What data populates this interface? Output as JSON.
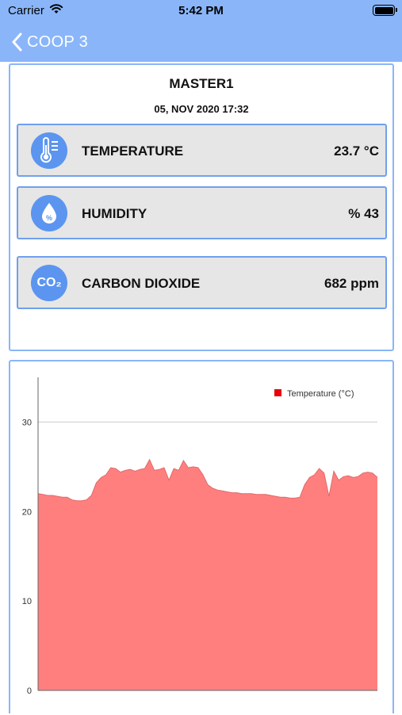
{
  "status_bar": {
    "carrier": "Carrier",
    "time": "5:42 PM"
  },
  "nav": {
    "back_label": "COOP 3"
  },
  "device": {
    "name": "MASTER1",
    "timestamp": "05, NOV 2020 17:32"
  },
  "sensors": [
    {
      "label": "TEMPERATURE",
      "value": "23.7 °C",
      "icon": "thermometer-icon"
    },
    {
      "label": "HUMIDITY",
      "value": "% 43",
      "icon": "droplet-icon"
    },
    {
      "label": "CARBON DIOXIDE",
      "value": "682 ppm",
      "icon": "co2-icon",
      "icon_text": "CO₂"
    }
  ],
  "colors": {
    "accent": "#8ab6f9",
    "card_border": "#6ea0ee",
    "icon_bg": "#5b95f0",
    "series": "#ff7f7f",
    "legend": "#e8000b"
  },
  "chart_data": {
    "type": "area",
    "legend_position": "top-right",
    "grid": true,
    "ylim": [
      0,
      35
    ],
    "yticks": [
      "0",
      "10",
      "20",
      "30"
    ],
    "series": [
      {
        "name": "Temperature (°C)",
        "values": [
          22.0,
          21.9,
          21.8,
          21.8,
          21.7,
          21.6,
          21.6,
          21.3,
          21.2,
          21.2,
          21.3,
          21.8,
          23.2,
          23.8,
          24.1,
          24.9,
          24.8,
          24.4,
          24.6,
          24.7,
          24.5,
          24.7,
          24.8,
          25.8,
          24.6,
          24.7,
          24.9,
          23.5,
          24.8,
          24.6,
          25.7,
          24.9,
          25.0,
          24.9,
          24.1,
          23.0,
          22.6,
          22.4,
          22.3,
          22.2,
          22.1,
          22.1,
          22.0,
          22.0,
          22.0,
          21.9,
          21.9,
          21.9,
          21.8,
          21.7,
          21.6,
          21.6,
          21.5,
          21.5,
          21.6,
          23.0,
          23.8,
          24.1,
          24.8,
          24.3,
          21.7,
          24.5,
          23.5,
          23.9,
          24.0,
          23.8,
          23.9,
          24.3,
          24.4,
          24.3,
          23.8
        ]
      }
    ]
  }
}
